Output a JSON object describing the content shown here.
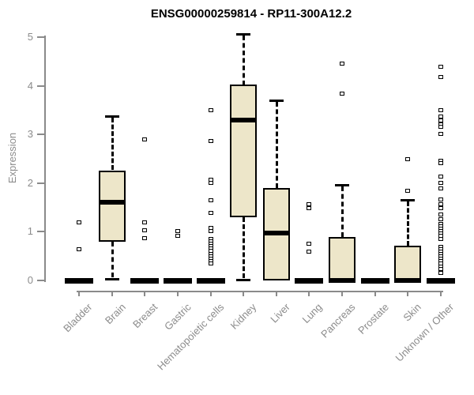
{
  "header": {
    "title": "ENSG00000259814 - RP11-300A12.2"
  },
  "chart_data": {
    "type": "boxplot",
    "title": "ENSG00000259814 - RP11-300A12.2",
    "xlabel": "",
    "ylabel": "Expression",
    "ylim": [
      0,
      5
    ],
    "yticks": [
      0,
      1,
      2,
      3,
      4,
      5
    ],
    "grid": false,
    "legend": "none",
    "colors": {
      "box_fill": "#EDE6C9",
      "box_stroke": "#000000",
      "axis": "#8A8A8A",
      "tick_text": "#8C8C8C",
      "title_text": "#000000",
      "background": "#FFFFFF"
    },
    "categories": [
      "Bladder",
      "Brain",
      "Breast",
      "Gastric",
      "Hematopoietic cells",
      "Kidney",
      "Liver",
      "Lung",
      "Pancreas",
      "Prostate",
      "Skin",
      "Unknown / Other"
    ],
    "boxes": [
      {
        "category": "Bladder",
        "low": 0,
        "q1": 0,
        "median": 0,
        "q3": 0,
        "high": 0,
        "outliers": [
          1.2,
          0.65
        ]
      },
      {
        "category": "Brain",
        "low": 0.03,
        "q1": 0.8,
        "median": 1.61,
        "q3": 2.26,
        "high": 3.37,
        "outliers": []
      },
      {
        "category": "Breast",
        "low": 0,
        "q1": 0,
        "median": 0,
        "q3": 0,
        "high": 0,
        "outliers": [
          2.91,
          1.2,
          1.04,
          0.88
        ]
      },
      {
        "category": "Gastric",
        "low": 0,
        "q1": 0,
        "median": 0,
        "q3": 0,
        "high": 0,
        "outliers": [
          1.02,
          0.93
        ]
      },
      {
        "category": "Hematopoietic cells",
        "low": 0,
        "q1": 0,
        "median": 0,
        "q3": 0,
        "high": 0,
        "outliers": [
          3.51,
          2.87,
          2.08,
          2.02,
          1.66,
          1.4,
          1.08,
          1.02,
          0.86,
          0.81,
          0.76,
          0.71,
          0.66,
          0.61,
          0.56,
          0.51,
          0.46,
          0.41,
          0.36
        ]
      },
      {
        "category": "Kidney",
        "low": 0.02,
        "q1": 1.3,
        "median": 3.3,
        "q3": 4.02,
        "high": 5.07,
        "outliers": []
      },
      {
        "category": "Liver",
        "low": 0,
        "q1": 0,
        "median": 0.98,
        "q3": 1.9,
        "high": 3.7,
        "outliers": []
      },
      {
        "category": "Lung",
        "low": 0,
        "q1": 0,
        "median": 0,
        "q3": 0,
        "high": 0,
        "outliers": [
          1.57,
          1.5,
          0.76,
          0.6
        ]
      },
      {
        "category": "Pancreas",
        "low": 0,
        "q1": 0,
        "median": 0.02,
        "q3": 0.9,
        "high": 1.97,
        "outliers": [
          4.47,
          3.85
        ]
      },
      {
        "category": "Prostate",
        "low": 0,
        "q1": 0,
        "median": 0,
        "q3": 0,
        "high": 0,
        "outliers": []
      },
      {
        "category": "Skin",
        "low": 0,
        "q1": 0,
        "median": 0.02,
        "q3": 0.72,
        "high": 1.66,
        "outliers": [
          2.5,
          1.85
        ]
      },
      {
        "category": "Unknown / Other",
        "low": 0,
        "q1": 0,
        "median": 0,
        "q3": 0,
        "high": 0,
        "outliers": [
          4.4,
          4.19,
          3.51,
          3.38,
          3.3,
          3.22,
          3.17,
          3.02,
          2.47,
          2.42,
          2.14,
          2.01,
          1.9,
          1.67,
          1.58,
          1.49,
          1.36,
          1.27,
          1.17,
          1.12,
          1.07,
          1.02,
          0.97,
          0.92,
          0.86,
          0.7,
          0.65,
          0.6,
          0.55,
          0.5,
          0.45,
          0.4,
          0.35,
          0.3,
          0.24,
          0.16
        ]
      }
    ]
  }
}
